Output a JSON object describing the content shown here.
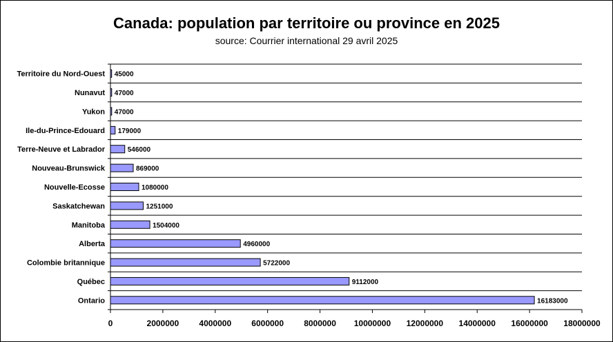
{
  "chart_data": {
    "type": "bar",
    "orientation": "horizontal",
    "title": "Canada: population par territoire ou province en 2025",
    "subtitle": "source: Courrier international 29 avril 2025",
    "categories": [
      "Territoire du Nord-Ouest",
      "Nunavut",
      "Yukon",
      "Ile-du-Prince-Edouard",
      "Terre-Neuve et Labrador",
      "Nouveau-Brunswick",
      "Nouvelle-Ecosse",
      "Saskatchewan",
      "Manitoba",
      "Alberta",
      "Colombie britannique",
      "Québec",
      "Ontario"
    ],
    "values": [
      45000,
      47000,
      47000,
      179000,
      546000,
      869000,
      1080000,
      1251000,
      1504000,
      4960000,
      5722000,
      9112000,
      16183000
    ],
    "data_labels": [
      "45000",
      "47000",
      "47000",
      "179000",
      "546000",
      "869000",
      "1080000",
      "1251000",
      "1504000",
      "4960000",
      "5722000",
      "9112000",
      "16183000"
    ],
    "xlim": [
      0,
      18000000
    ],
    "xticks": [
      0,
      2000000,
      4000000,
      6000000,
      8000000,
      10000000,
      12000000,
      14000000,
      16000000,
      18000000
    ],
    "xtick_labels": [
      "0",
      "2000000",
      "4000000",
      "6000000",
      "8000000",
      "10000000",
      "12000000",
      "14000000",
      "16000000",
      "18000000"
    ],
    "grid": "horizontal",
    "legend": "none",
    "bar_color": "#9999ff"
  }
}
